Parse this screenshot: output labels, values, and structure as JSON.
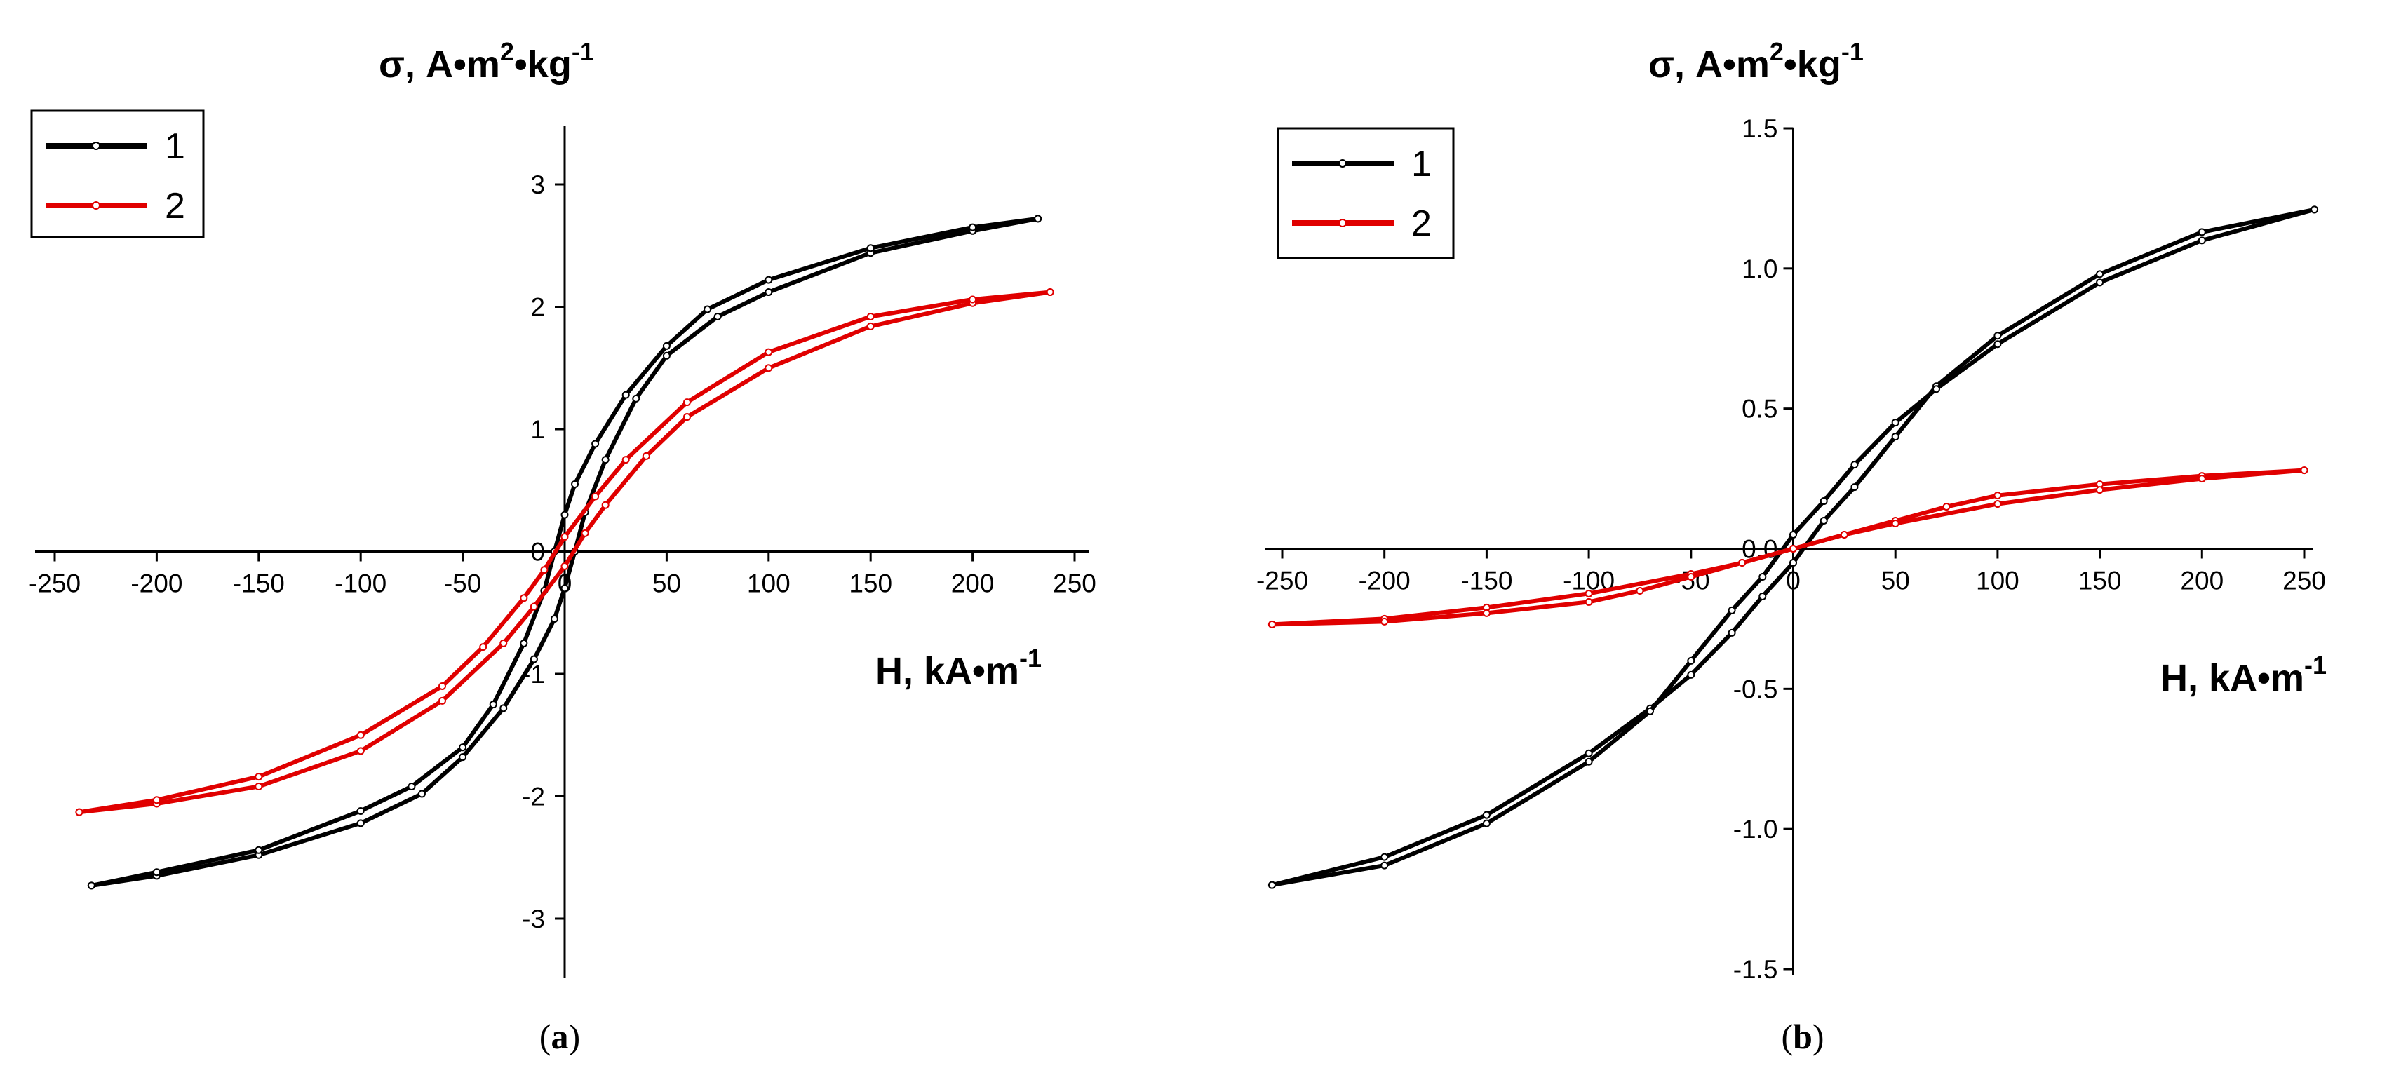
{
  "chart_data": [
    {
      "type": "line",
      "panel_label": "a",
      "xlabel_main": "H, kA•m",
      "xlabel_exp": "-1",
      "ylabel_parts": [
        "σ, A•m",
        "2",
        "•kg",
        "-1"
      ],
      "xlim": [
        -250,
        250
      ],
      "ylim": [
        -3.5,
        3.5
      ],
      "xticks": [
        -250,
        -200,
        -150,
        -100,
        -50,
        0,
        50,
        100,
        150,
        200,
        250
      ],
      "yticks": [
        -3,
        -2,
        -1,
        0,
        1,
        2,
        3
      ],
      "ytick_labels": [
        "-3",
        "-2",
        "-1",
        "0",
        "1",
        "2",
        "3"
      ],
      "legend": [
        "1",
        "2"
      ],
      "series": [
        {
          "name": "1",
          "color": "#000000",
          "branches": [
            [
              [
                -232,
                -2.73
              ],
              [
                -200,
                -2.65
              ],
              [
                -150,
                -2.48
              ],
              [
                -100,
                -2.22
              ],
              [
                -70,
                -1.98
              ],
              [
                -50,
                -1.68
              ],
              [
                -30,
                -1.28
              ],
              [
                -15,
                -0.88
              ],
              [
                -5,
                -0.55
              ],
              [
                0,
                -0.3
              ],
              [
                5,
                0
              ],
              [
                10,
                0.32
              ],
              [
                20,
                0.75
              ],
              [
                35,
                1.25
              ],
              [
                50,
                1.6
              ],
              [
                75,
                1.92
              ],
              [
                100,
                2.12
              ],
              [
                150,
                2.44
              ],
              [
                200,
                2.62
              ],
              [
                232,
                2.72
              ]
            ],
            [
              [
                232,
                2.72
              ],
              [
                200,
                2.65
              ],
              [
                150,
                2.48
              ],
              [
                100,
                2.22
              ],
              [
                70,
                1.98
              ],
              [
                50,
                1.68
              ],
              [
                30,
                1.28
              ],
              [
                15,
                0.88
              ],
              [
                5,
                0.55
              ],
              [
                0,
                0.3
              ],
              [
                -5,
                0
              ],
              [
                -10,
                -0.32
              ],
              [
                -20,
                -0.75
              ],
              [
                -35,
                -1.25
              ],
              [
                -50,
                -1.6
              ],
              [
                -75,
                -1.92
              ],
              [
                -100,
                -2.12
              ],
              [
                -150,
                -2.44
              ],
              [
                -200,
                -2.62
              ],
              [
                -232,
                -2.73
              ]
            ]
          ]
        },
        {
          "name": "2",
          "color": "#e00000",
          "branches": [
            [
              [
                -238,
                -2.13
              ],
              [
                -200,
                -2.06
              ],
              [
                -150,
                -1.92
              ],
              [
                -100,
                -1.63
              ],
              [
                -60,
                -1.22
              ],
              [
                -30,
                -0.75
              ],
              [
                -15,
                -0.45
              ],
              [
                0,
                -0.12
              ],
              [
                10,
                0.15
              ],
              [
                20,
                0.38
              ],
              [
                40,
                0.78
              ],
              [
                60,
                1.1
              ],
              [
                100,
                1.5
              ],
              [
                150,
                1.84
              ],
              [
                200,
                2.03
              ],
              [
                238,
                2.12
              ]
            ],
            [
              [
                238,
                2.12
              ],
              [
                200,
                2.06
              ],
              [
                150,
                1.92
              ],
              [
                100,
                1.63
              ],
              [
                60,
                1.22
              ],
              [
                30,
                0.75
              ],
              [
                15,
                0.45
              ],
              [
                0,
                0.12
              ],
              [
                -10,
                -0.15
              ],
              [
                -20,
                -0.38
              ],
              [
                -40,
                -0.78
              ],
              [
                -60,
                -1.1
              ],
              [
                -100,
                -1.5
              ],
              [
                -150,
                -1.84
              ],
              [
                -200,
                -2.03
              ],
              [
                -238,
                -2.13
              ]
            ]
          ]
        }
      ]
    },
    {
      "type": "line",
      "panel_label": "b",
      "xlabel_main": "H, kA•m",
      "xlabel_exp": "-1",
      "ylabel_parts": [
        "σ, A•m",
        "2",
        "•kg",
        "-1"
      ],
      "xlim": [
        -260,
        260
      ],
      "ylim": [
        -1.5,
        1.5
      ],
      "xticks": [
        -250,
        -200,
        -150,
        -100,
        -50,
        0,
        50,
        100,
        150,
        200,
        250
      ],
      "yticks": [
        -1.5,
        -1.0,
        -0.5,
        0.0,
        0.5,
        1.0,
        1.5
      ],
      "ytick_labels": [
        "-1.5",
        "-1.0",
        "-0.5",
        "0.0",
        "0.5",
        "1.0",
        "1.5"
      ],
      "legend": [
        "1",
        "2"
      ],
      "series": [
        {
          "name": "1",
          "color": "#000000",
          "branches": [
            [
              [
                -255,
                -1.2
              ],
              [
                -200,
                -1.1
              ],
              [
                -150,
                -0.95
              ],
              [
                -100,
                -0.73
              ],
              [
                -70,
                -0.57
              ],
              [
                -50,
                -0.45
              ],
              [
                -30,
                -0.3
              ],
              [
                -15,
                -0.17
              ],
              [
                0,
                -0.05
              ],
              [
                15,
                0.1
              ],
              [
                30,
                0.22
              ],
              [
                50,
                0.4
              ],
              [
                70,
                0.58
              ],
              [
                100,
                0.76
              ],
              [
                150,
                0.98
              ],
              [
                200,
                1.13
              ],
              [
                255,
                1.21
              ]
            ],
            [
              [
                255,
                1.21
              ],
              [
                200,
                1.1
              ],
              [
                150,
                0.95
              ],
              [
                100,
                0.73
              ],
              [
                70,
                0.57
              ],
              [
                50,
                0.45
              ],
              [
                30,
                0.3
              ],
              [
                15,
                0.17
              ],
              [
                0,
                0.05
              ],
              [
                -15,
                -0.1
              ],
              [
                -30,
                -0.22
              ],
              [
                -50,
                -0.4
              ],
              [
                -70,
                -0.58
              ],
              [
                -100,
                -0.76
              ],
              [
                -150,
                -0.98
              ],
              [
                -200,
                -1.13
              ],
              [
                -255,
                -1.2
              ]
            ]
          ]
        },
        {
          "name": "2",
          "color": "#e00000",
          "branches": [
            [
              [
                -255,
                -0.27
              ],
              [
                -200,
                -0.25
              ],
              [
                -150,
                -0.21
              ],
              [
                -100,
                -0.16
              ],
              [
                -50,
                -0.09
              ],
              [
                -25,
                -0.05
              ],
              [
                0,
                0.0
              ],
              [
                25,
                0.05
              ],
              [
                50,
                0.1
              ],
              [
                75,
                0.15
              ],
              [
                100,
                0.19
              ],
              [
                150,
                0.23
              ],
              [
                200,
                0.26
              ],
              [
                250,
                0.28
              ]
            ],
            [
              [
                250,
                0.28
              ],
              [
                200,
                0.25
              ],
              [
                150,
                0.21
              ],
              [
                100,
                0.16
              ],
              [
                50,
                0.09
              ],
              [
                25,
                0.05
              ],
              [
                0,
                0.0
              ],
              [
                -25,
                -0.05
              ],
              [
                -50,
                -0.1
              ],
              [
                -75,
                -0.15
              ],
              [
                -100,
                -0.19
              ],
              [
                -150,
                -0.23
              ],
              [
                -200,
                -0.26
              ],
              [
                -255,
                -0.27
              ]
            ]
          ]
        }
      ]
    }
  ]
}
